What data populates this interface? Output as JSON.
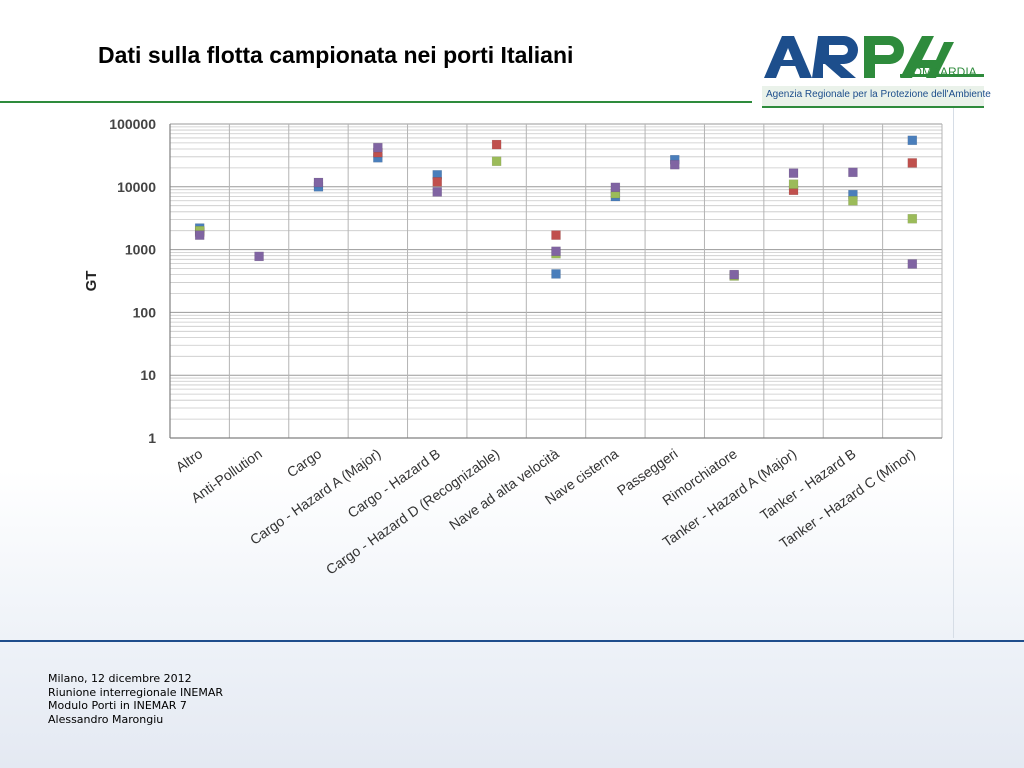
{
  "slide": {
    "title": "Dati sulla flotta campionata nei porti Italiani"
  },
  "logo": {
    "mark": "ARPA",
    "region": "LOMBARDIA",
    "subtitle": "Agenzia Regionale per la Protezione dell'Ambiente",
    "colors": {
      "blue": "#1d4e8c",
      "green": "#2e8b3c"
    }
  },
  "chart_data": {
    "type": "scatter",
    "ylabel": "GT",
    "yscale": "log",
    "ylim": [
      1,
      100000
    ],
    "yticks": [
      "1",
      "10",
      "100",
      "1000",
      "10000",
      "100000"
    ],
    "grid": true,
    "legend": "none",
    "categories": [
      "Altro",
      "Anti-Pollution",
      "Cargo",
      "Cargo - Hazard A (Major)",
      "Cargo - Hazard B",
      "Cargo - Hazard D (Recognizable)",
      "Nave ad alta velocità",
      "Nave cisterna",
      "Passeggeri",
      "Rimorchiatore",
      "Tanker - Hazard A (Major)",
      "Tanker - Hazard B",
      "Tanker - Hazard C (Minor)"
    ],
    "series": [
      {
        "color": "#4a7ebb",
        "values": [
          2200,
          null,
          10000,
          29000,
          15500,
          null,
          410,
          7000,
          27000,
          null,
          null,
          7500,
          55000
        ]
      },
      {
        "color": "#c0504d",
        "values": [
          1900,
          null,
          null,
          35000,
          12000,
          47000,
          1700,
          null,
          null,
          null,
          8800,
          null,
          24000
        ]
      },
      {
        "color": "#9bbb59",
        "values": [
          2000,
          null,
          null,
          null,
          null,
          25500,
          860,
          7800,
          null,
          380,
          11000,
          6000,
          3100
        ]
      },
      {
        "color": "#8064a2",
        "values": [
          1700,
          780,
          11700,
          42000,
          8300,
          null,
          940,
          9800,
          22500,
          400,
          16500,
          17000,
          590
        ]
      }
    ]
  },
  "footer": {
    "lines": [
      "Milano, 12 dicembre 2012",
      "Riunione interregionale INEMAR",
      "Modulo Porti in INEMAR 7",
      "Alessandro Marongiu"
    ]
  }
}
